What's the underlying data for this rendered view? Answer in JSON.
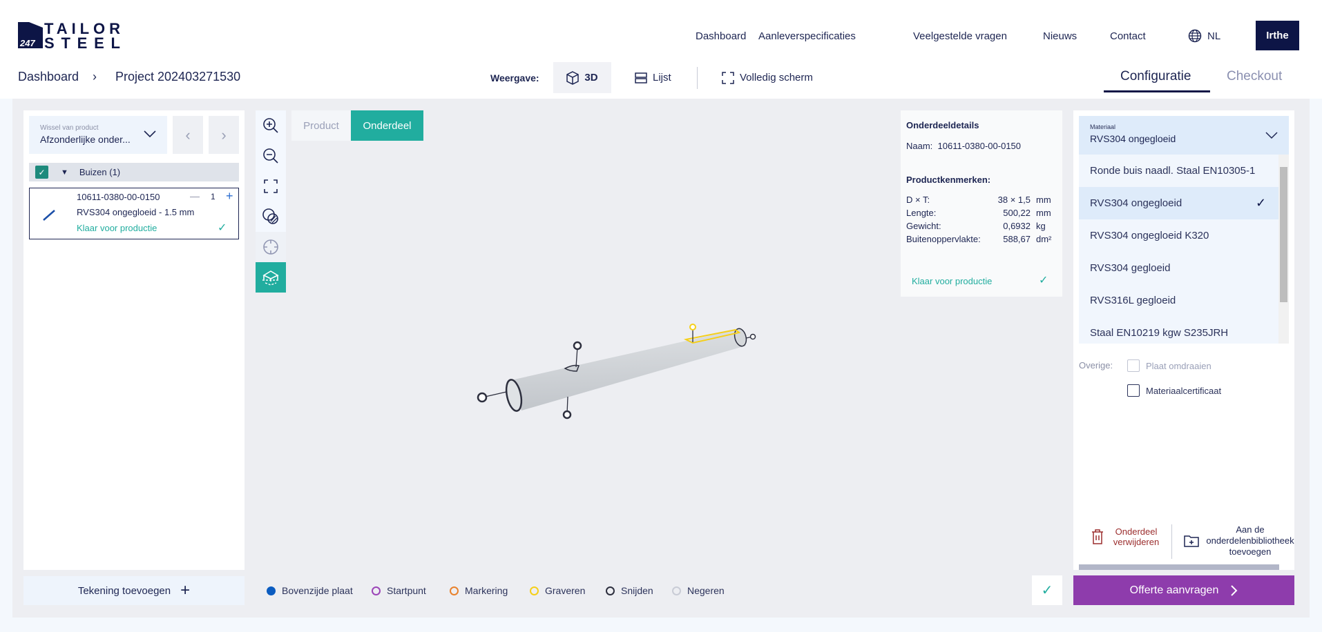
{
  "logo": {
    "text": "247 TAILOR STEEL"
  },
  "nav": {
    "items": [
      "Dashboard",
      "Aanleverspecificaties",
      "Veelgestelde vragen",
      "Nieuws",
      "Contact"
    ],
    "language": "NL",
    "user": "Irthe"
  },
  "breadcrumb": {
    "root": "Dashboard",
    "current": "Project 202403271530"
  },
  "view": {
    "label": "Weergave:",
    "3d": "3D",
    "list": "Lijst",
    "fullscreen": "Volledig scherm"
  },
  "steps": {
    "config": "Configuratie",
    "checkout": "Checkout"
  },
  "left": {
    "switch_label": "Wissel van product",
    "switch_value": "Afzonderlijke onder...",
    "group": "Buizen (1)",
    "item": {
      "name": "10611-0380-00-0150",
      "qty": "1",
      "material": "RVS304 ongegloeid - 1.5 mm",
      "status": "Klaar voor productie"
    },
    "add_drawing": "Tekening toevoegen"
  },
  "viewer_tabs": {
    "product": "Product",
    "part": "Onderdeel"
  },
  "details": {
    "title": "Onderdeeldetails",
    "name_label": "Naam:",
    "name": "10611-0380-00-0150",
    "props_title": "Productkenmerken:",
    "props": [
      {
        "label": "D × T:",
        "value": "38 × 1,5",
        "unit": "mm"
      },
      {
        "label": "Lengte:",
        "value": "500,22",
        "unit": "mm"
      },
      {
        "label": "Gewicht:",
        "value": "0,6932",
        "unit": "kg"
      },
      {
        "label": "Buitenoppervlakte:",
        "value": "588,67",
        "unit": "dm²"
      }
    ],
    "status": "Klaar voor productie"
  },
  "legend": [
    {
      "label": "Bovenzijde plaat",
      "color": "#0b5cc0",
      "filled": true
    },
    {
      "label": "Startpunt",
      "color": "#9b44b8"
    },
    {
      "label": "Markering",
      "color": "#e8812c"
    },
    {
      "label": "Graveren",
      "color": "#f5cf19"
    },
    {
      "label": "Snijden",
      "color": "#2d2f3e"
    },
    {
      "label": "Negeren",
      "color": "#c9ccd6"
    }
  ],
  "material": {
    "label": "Materiaal",
    "value": "RVS304 ongegloeid",
    "options": [
      "Ronde buis naadl. Staal EN10305-1",
      "RVS304 ongegloeid",
      "RVS304 ongegloeid K320",
      "RVS304 gegloeid",
      "RVS316L gegloeid",
      "Staal EN10219 kgw S235JRH"
    ],
    "selected_index": 1
  },
  "other": {
    "label": "Overige:",
    "flip": "Plaat omdraaien",
    "certificate": "Materiaalcertificaat"
  },
  "actions": {
    "delete": "Onderdeel verwijderen",
    "library": "Aan de onderdelenbibliotheek toevoegen"
  },
  "quote": "Offerte aanvragen",
  "colors": {
    "navy": "#0d1546",
    "teal": "#21ad9f",
    "purple": "#8e3cac",
    "delete": "#9b2d2d"
  }
}
